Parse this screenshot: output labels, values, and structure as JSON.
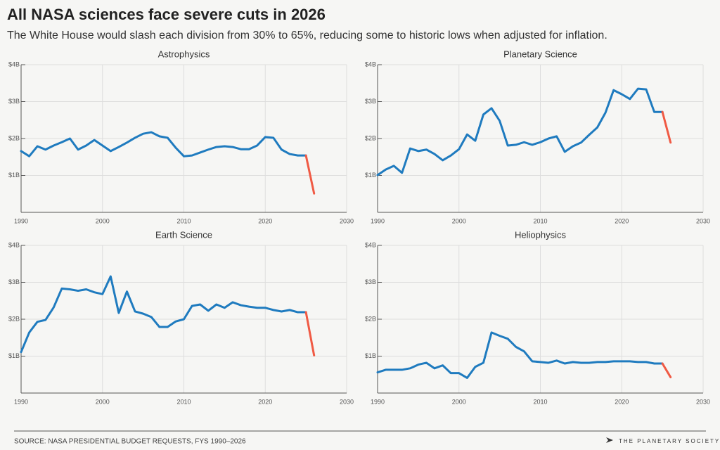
{
  "header": {
    "title": "All NASA sciences face severe cuts in 2026",
    "subtitle": "The White House would slash each division from 30% to 65%, reducing some to historic lows when adjusted for inflation."
  },
  "footer": {
    "source": "SOURCE: NASA PRESIDENTIAL BUDGET REQUESTS, FYS 1990–2026",
    "logo": "THE PLANETARY SOCIETY"
  },
  "chart_data": [
    {
      "type": "line",
      "title": "Astrophysics",
      "x": [
        1990,
        1991,
        1992,
        1993,
        1994,
        1995,
        1996,
        1997,
        1998,
        1999,
        2000,
        2001,
        2002,
        2003,
        2004,
        2005,
        2006,
        2007,
        2008,
        2009,
        2010,
        2011,
        2012,
        2013,
        2014,
        2015,
        2016,
        2017,
        2018,
        2019,
        2020,
        2021,
        2022,
        2023,
        2024,
        2025,
        2026
      ],
      "series": [
        {
          "color": "#1f7bbf",
          "values": [
            1.66,
            1.52,
            1.79,
            1.7,
            1.81,
            1.9,
            2.0,
            1.7,
            1.81,
            1.96,
            1.81,
            1.66,
            1.77,
            1.89,
            2.02,
            2.13,
            2.17,
            2.06,
            2.02,
            1.75,
            1.52,
            1.54,
            1.62,
            1.7,
            1.77,
            1.79,
            1.77,
            1.71,
            1.71,
            1.81,
            2.04,
            2.02,
            1.7,
            1.58,
            1.54,
            1.54,
            null
          ]
        },
        {
          "color": "#f05a44",
          "values": [
            null,
            null,
            null,
            null,
            null,
            null,
            null,
            null,
            null,
            null,
            null,
            null,
            null,
            null,
            null,
            null,
            null,
            null,
            null,
            null,
            null,
            null,
            null,
            null,
            null,
            null,
            null,
            null,
            null,
            null,
            null,
            null,
            null,
            null,
            null,
            1.54,
            0.51
          ]
        }
      ],
      "xlim": [
        1990,
        2030
      ],
      "xticks": [
        1990,
        2000,
        2010,
        2020,
        2030
      ],
      "ylim": [
        0,
        4
      ],
      "yticks": [
        {
          "value": 1,
          "label": "$1B"
        },
        {
          "value": 2,
          "label": "$2B"
        },
        {
          "value": 3,
          "label": "$3B"
        },
        {
          "value": 4,
          "label": "$4B"
        }
      ],
      "grid": true
    },
    {
      "type": "line",
      "title": "Planetary Science",
      "x": [
        1990,
        1991,
        1992,
        1993,
        1994,
        1995,
        1996,
        1997,
        1998,
        1999,
        2000,
        2001,
        2002,
        2003,
        2004,
        2005,
        2006,
        2007,
        2008,
        2009,
        2010,
        2011,
        2012,
        2013,
        2014,
        2015,
        2016,
        2017,
        2018,
        2019,
        2020,
        2021,
        2022,
        2023,
        2024,
        2025,
        2026
      ],
      "series": [
        {
          "color": "#1f7bbf",
          "values": [
            1.01,
            1.16,
            1.26,
            1.07,
            1.73,
            1.66,
            1.7,
            1.58,
            1.41,
            1.54,
            1.71,
            2.11,
            1.94,
            2.65,
            2.82,
            2.48,
            1.81,
            1.83,
            1.9,
            1.83,
            1.9,
            2.0,
            2.06,
            1.64,
            1.79,
            1.89,
            2.1,
            2.3,
            2.7,
            3.31,
            3.2,
            3.07,
            3.35,
            3.33,
            2.72,
            2.72,
            null
          ]
        },
        {
          "color": "#f05a44",
          "values": [
            null,
            null,
            null,
            null,
            null,
            null,
            null,
            null,
            null,
            null,
            null,
            null,
            null,
            null,
            null,
            null,
            null,
            null,
            null,
            null,
            null,
            null,
            null,
            null,
            null,
            null,
            null,
            null,
            null,
            null,
            null,
            null,
            null,
            null,
            null,
            2.72,
            1.89
          ]
        }
      ],
      "xlim": [
        1990,
        2030
      ],
      "xticks": [
        1990,
        2000,
        2010,
        2020,
        2030
      ],
      "ylim": [
        0,
        4
      ],
      "yticks": [
        {
          "value": 1,
          "label": "$1B"
        },
        {
          "value": 2,
          "label": "$2B"
        },
        {
          "value": 3,
          "label": "$3B"
        },
        {
          "value": 4,
          "label": "$4B"
        }
      ],
      "grid": true
    },
    {
      "type": "line",
      "title": "Earth Science",
      "x": [
        1990,
        1991,
        1992,
        1993,
        1994,
        1995,
        1996,
        1997,
        1998,
        1999,
        2000,
        2001,
        2002,
        2003,
        2004,
        2005,
        2006,
        2007,
        2008,
        2009,
        2010,
        2011,
        2012,
        2013,
        2014,
        2015,
        2016,
        2017,
        2018,
        2019,
        2020,
        2021,
        2022,
        2023,
        2024,
        2025,
        2026
      ],
      "series": [
        {
          "color": "#1f7bbf",
          "values": [
            1.11,
            1.64,
            1.93,
            1.98,
            2.32,
            2.83,
            2.81,
            2.77,
            2.81,
            2.73,
            2.68,
            3.16,
            2.17,
            2.75,
            2.21,
            2.15,
            2.06,
            1.79,
            1.79,
            1.94,
            2.0,
            2.36,
            2.4,
            2.23,
            2.4,
            2.31,
            2.46,
            2.38,
            2.34,
            2.31,
            2.31,
            2.25,
            2.21,
            2.25,
            2.19,
            2.19,
            null
          ]
        },
        {
          "color": "#f05a44",
          "values": [
            null,
            null,
            null,
            null,
            null,
            null,
            null,
            null,
            null,
            null,
            null,
            null,
            null,
            null,
            null,
            null,
            null,
            null,
            null,
            null,
            null,
            null,
            null,
            null,
            null,
            null,
            null,
            null,
            null,
            null,
            null,
            null,
            null,
            null,
            null,
            2.19,
            1.02
          ]
        }
      ],
      "xlim": [
        1990,
        2030
      ],
      "xticks": [
        1990,
        2000,
        2010,
        2020,
        2030
      ],
      "ylim": [
        0,
        4
      ],
      "yticks": [
        {
          "value": 1,
          "label": "$1B"
        },
        {
          "value": 2,
          "label": "$2B"
        },
        {
          "value": 3,
          "label": "$3B"
        },
        {
          "value": 4,
          "label": "$4B"
        }
      ],
      "grid": true
    },
    {
      "type": "line",
      "title": "Heliophysics",
      "x": [
        1990,
        1991,
        1992,
        1993,
        1994,
        1995,
        1996,
        1997,
        1998,
        1999,
        2000,
        2001,
        2002,
        2003,
        2004,
        2005,
        2006,
        2007,
        2008,
        2009,
        2010,
        2011,
        2012,
        2013,
        2014,
        2015,
        2016,
        2017,
        2018,
        2019,
        2020,
        2021,
        2022,
        2023,
        2024,
        2025,
        2026
      ],
      "series": [
        {
          "color": "#1f7bbf",
          "values": [
            0.56,
            0.63,
            0.63,
            0.63,
            0.67,
            0.77,
            0.82,
            0.67,
            0.75,
            0.54,
            0.54,
            0.41,
            0.71,
            0.82,
            1.64,
            1.55,
            1.47,
            1.25,
            1.13,
            0.86,
            0.84,
            0.82,
            0.88,
            0.8,
            0.84,
            0.82,
            0.82,
            0.84,
            0.84,
            0.86,
            0.86,
            0.86,
            0.84,
            0.84,
            0.8,
            0.8,
            null
          ]
        },
        {
          "color": "#f05a44",
          "values": [
            null,
            null,
            null,
            null,
            null,
            null,
            null,
            null,
            null,
            null,
            null,
            null,
            null,
            null,
            null,
            null,
            null,
            null,
            null,
            null,
            null,
            null,
            null,
            null,
            null,
            null,
            null,
            null,
            null,
            null,
            null,
            null,
            null,
            null,
            null,
            0.8,
            0.43
          ]
        }
      ],
      "xlim": [
        1990,
        2030
      ],
      "xticks": [
        1990,
        2000,
        2010,
        2020,
        2030
      ],
      "ylim": [
        0,
        4
      ],
      "yticks": [
        {
          "value": 1,
          "label": "$1B"
        },
        {
          "value": 2,
          "label": "$2B"
        },
        {
          "value": 3,
          "label": "$3B"
        },
        {
          "value": 4,
          "label": "$4B"
        }
      ],
      "grid": true
    }
  ]
}
